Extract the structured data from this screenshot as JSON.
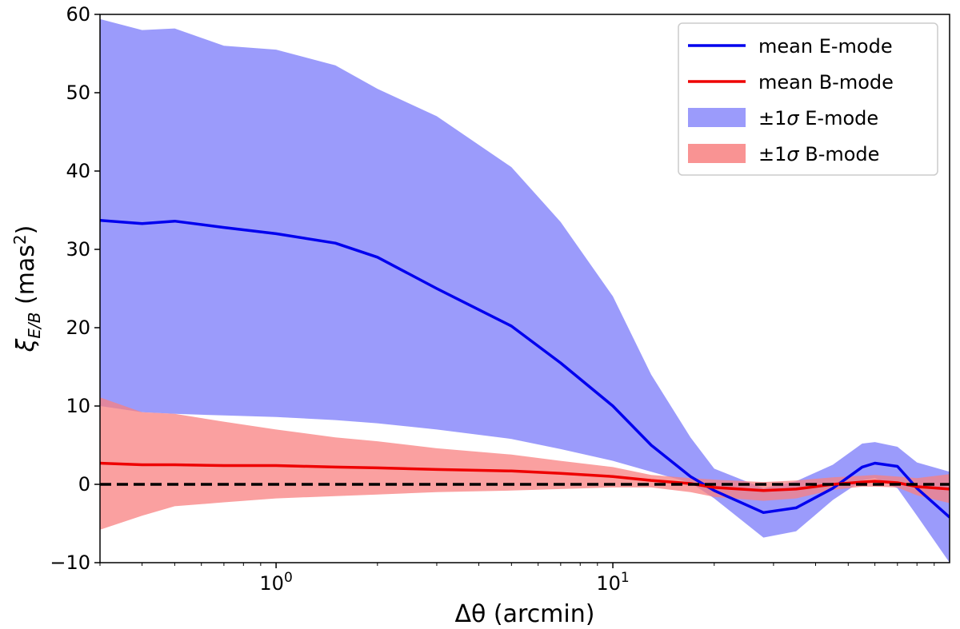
{
  "chart_data": {
    "type": "line",
    "title": "",
    "xlabel": "Δθ (arcmin)",
    "ylabel": "ξ_E/B (mas²)",
    "xscale": "log",
    "xlim": [
      0.3,
      100
    ],
    "ylim": [
      -10,
      60
    ],
    "yticks": [
      -10,
      0,
      10,
      20,
      30,
      40,
      50,
      60
    ],
    "ytick_labels": [
      "−10",
      "0",
      "10",
      "20",
      "30",
      "40",
      "50",
      "60"
    ],
    "xticks": [
      {
        "value": 1,
        "base": "10",
        "exp": "0"
      },
      {
        "value": 10,
        "base": "10",
        "exp": "1"
      }
    ],
    "x": [
      0.3,
      0.4,
      0.5,
      0.7,
      1.0,
      1.5,
      2.0,
      3.0,
      5.0,
      7.0,
      10.0,
      13.0,
      17.0,
      20.0,
      28.0,
      35.0,
      45.0,
      55.0,
      60.0,
      70.0,
      80.0,
      100.0
    ],
    "series": [
      {
        "name": "mean E-mode",
        "kind": "line",
        "color": "#0000ee",
        "values": [
          33.7,
          33.3,
          33.6,
          32.8,
          32.0,
          30.8,
          29.0,
          25.0,
          20.2,
          15.5,
          10.0,
          5.0,
          1.0,
          -0.8,
          -3.6,
          -3.0,
          -0.5,
          2.2,
          2.7,
          2.3,
          -0.5,
          -4.2
        ]
      },
      {
        "name": "mean B-mode",
        "kind": "line",
        "color": "#ee0000",
        "values": [
          2.7,
          2.5,
          2.5,
          2.4,
          2.4,
          2.2,
          2.1,
          1.9,
          1.7,
          1.4,
          1.0,
          0.5,
          0.1,
          -0.4,
          -0.8,
          -0.6,
          0.0,
          0.3,
          0.4,
          0.2,
          -0.3,
          -0.6
        ]
      },
      {
        "name": "±1σ E-mode",
        "kind": "band",
        "color": "#8a8afa",
        "lower": [
          10.0,
          9.2,
          9.0,
          8.8,
          8.6,
          8.2,
          7.8,
          7.0,
          5.8,
          4.5,
          3.0,
          1.6,
          0.2,
          -1.8,
          -6.8,
          -6.0,
          -2.0,
          0.5,
          0.8,
          -0.5,
          -4.0,
          -10.0
        ],
        "upper": [
          59.4,
          58.0,
          58.2,
          56.0,
          55.5,
          53.5,
          50.5,
          47.0,
          40.5,
          33.5,
          24.0,
          14.0,
          6.0,
          2.0,
          -0.5,
          0.4,
          2.5,
          5.2,
          5.4,
          4.8,
          2.8,
          1.6
        ]
      },
      {
        "name": "±1σ B-mode",
        "kind": "band",
        "color": "#f88080",
        "lower": [
          -5.8,
          -4.0,
          -2.8,
          -2.3,
          -1.8,
          -1.5,
          -1.3,
          -1.0,
          -0.8,
          -0.6,
          -0.4,
          -0.4,
          -1.0,
          -1.6,
          -2.1,
          -1.8,
          -0.7,
          -0.3,
          -0.3,
          -0.4,
          -1.4,
          -2.4
        ],
        "upper": [
          11.1,
          9.2,
          9.0,
          8.0,
          7.0,
          6.0,
          5.5,
          4.6,
          3.8,
          3.0,
          2.2,
          1.2,
          0.8,
          0.6,
          0.3,
          0.5,
          0.9,
          1.1,
          1.2,
          1.0,
          0.8,
          1.3
        ]
      }
    ],
    "reference_line": {
      "y": 0,
      "style": "dashed",
      "color": "#000000"
    },
    "legend": {
      "position": "top-right",
      "entries": [
        {
          "label": "mean E-mode",
          "kind": "line",
          "color": "#0000ee"
        },
        {
          "label": "mean B-mode",
          "kind": "line",
          "color": "#ee0000"
        },
        {
          "label": "±1σ E-mode",
          "kind": "band",
          "color": "#8a8afa"
        },
        {
          "label": "±1σ B-mode",
          "kind": "band",
          "color": "#f88080"
        }
      ]
    }
  }
}
